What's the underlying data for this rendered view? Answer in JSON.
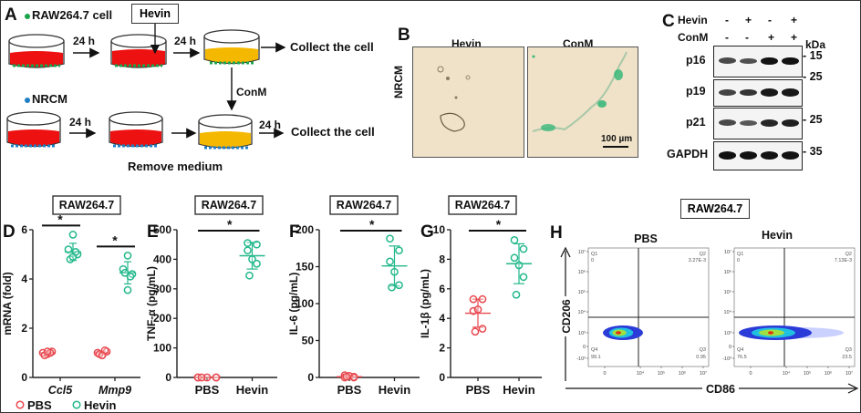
{
  "panelA": {
    "letter": "A",
    "raw_label": "RAW264.7 cell",
    "nrcm_label": "NRCM",
    "hevin_box": "Hevin",
    "t1": "24 h",
    "t2": "24 h",
    "t3": "24 h",
    "t4": "24 h",
    "collect1": "Collect the cell",
    "collect2": "Collect the cell",
    "conm": "ConM",
    "remove": "Remove medium",
    "colors": {
      "red": "#ee1111",
      "yellow": "#f5b800",
      "green_dot": "#1aa54a",
      "blue_dot": "#1f7fc4"
    }
  },
  "panelB": {
    "letter": "B",
    "col1": "Hevin",
    "col2": "ConM",
    "row": "NRCM",
    "scale": "100 µm"
  },
  "panelC": {
    "letter": "C",
    "row_hevin": "Hevin",
    "row_conm": "ConM",
    "hevin_signs": [
      "-",
      "+",
      "-",
      "+"
    ],
    "conm_signs": [
      "-",
      "-",
      "+",
      "+"
    ],
    "kda": "kDa",
    "blots": [
      {
        "name": "p16",
        "marker": "15",
        "intensity": [
          0.55,
          0.5,
          0.95,
          0.95
        ]
      },
      {
        "name": "p19",
        "marker": "25",
        "intensity": [
          0.6,
          0.7,
          0.9,
          0.9
        ]
      },
      {
        "name": "p21",
        "marker": "25",
        "intensity": [
          0.55,
          0.45,
          0.8,
          0.85
        ]
      },
      {
        "name": "GAPDH",
        "marker": "35",
        "intensity": [
          0.95,
          0.95,
          0.95,
          0.95
        ]
      }
    ]
  },
  "chart_data": [
    {
      "id": "D",
      "type": "scatter",
      "letter": "D",
      "title": "RAW264.7",
      "ylabel": "mRNA (fold)",
      "ylim": [
        0,
        6
      ],
      "yticks": [
        "0",
        "2",
        "4",
        "6"
      ],
      "categories": [
        "Ccl5",
        "Mmp9"
      ],
      "legend": [
        "PBS",
        "Hevin"
      ],
      "series": [
        {
          "name": "PBS",
          "color": "#e8494f",
          "groups": [
            [
              0.95,
              1.0,
              1.05,
              0.9,
              1.0,
              1.05
            ],
            [
              0.9,
              1.0,
              1.05,
              0.95,
              1.1,
              0.9
            ]
          ],
          "mean": [
            1.0,
            1.0
          ],
          "sd": [
            0.05,
            0.07
          ]
        },
        {
          "name": "Hevin",
          "color": "#22b88a",
          "groups": [
            [
              5.8,
              5.2,
              5.0,
              4.8,
              5.1,
              4.9
            ],
            [
              4.95,
              4.4,
              4.2,
              4.25,
              4.1,
              3.55
            ]
          ],
          "mean": [
            5.1,
            4.25
          ],
          "sd": [
            0.35,
            0.45
          ]
        }
      ],
      "significance": [
        "*",
        "*"
      ]
    },
    {
      "id": "E",
      "type": "scatter",
      "letter": "E",
      "title": "RAW264.7",
      "ylabel": "TNF-α (pg/mL)",
      "ylim": [
        0,
        500
      ],
      "yticks": [
        "0",
        "100",
        "200",
        "300",
        "400",
        "500"
      ],
      "categories": [
        "PBS",
        "Hevin"
      ],
      "series": [
        {
          "name": "PBS",
          "color": "#e8494f",
          "values": [
            0,
            0,
            0,
            0,
            0,
            0
          ],
          "mean": 0,
          "sd": 0
        },
        {
          "name": "Hevin",
          "color": "#22b88a",
          "values": [
            455,
            450,
            430,
            400,
            385,
            345
          ],
          "mean": 412,
          "sd": 45
        }
      ],
      "significance": "*"
    },
    {
      "id": "F",
      "type": "scatter",
      "letter": "F",
      "title": "RAW264.7",
      "ylabel": "IL-6 (pg/mL)",
      "ylim": [
        0,
        200
      ],
      "yticks": [
        "0",
        "50",
        "100",
        "150",
        "200"
      ],
      "categories": [
        "PBS",
        "Hevin"
      ],
      "series": [
        {
          "name": "PBS",
          "color": "#e8494f",
          "values": [
            3,
            1,
            0,
            2,
            0,
            1
          ],
          "mean": 1,
          "sd": 1
        },
        {
          "name": "Hevin",
          "color": "#22b88a",
          "values": [
            188,
            172,
            157,
            143,
            125,
            122
          ],
          "mean": 151,
          "sd": 27
        }
      ],
      "significance": "*"
    },
    {
      "id": "G",
      "type": "scatter",
      "letter": "G",
      "title": "RAW264.7",
      "ylabel": "IL-1β (pg/mL)",
      "ylim": [
        0,
        10
      ],
      "yticks": [
        "0",
        "2",
        "4",
        "6",
        "8",
        "10"
      ],
      "categories": [
        "PBS",
        "Hevin"
      ],
      "series": [
        {
          "name": "PBS",
          "color": "#e8494f",
          "values": [
            5.3,
            5.3,
            4.5,
            4.6,
            3.3,
            3.1
          ],
          "mean": 4.35,
          "sd": 0.95
        },
        {
          "name": "Hevin",
          "color": "#22b88a",
          "values": [
            9.3,
            8.7,
            8.1,
            7.6,
            6.8,
            5.6
          ],
          "mean": 7.7,
          "sd": 1.35
        }
      ],
      "significance": "*"
    }
  ],
  "panelH": {
    "letter": "H",
    "title": "RAW264.7",
    "xlabel": "CD86",
    "ylabel": "CD206",
    "yticks": [
      "10⁷",
      "10⁶",
      "10⁵",
      "10⁴",
      "10³",
      "0",
      "-10³"
    ],
    "xticks": [
      "0",
      "10⁴",
      "10⁵",
      "10⁶",
      "10⁷"
    ],
    "plots": [
      {
        "name": "PBS",
        "q1": "Q1",
        "q1v": "0",
        "q2": "Q2",
        "q2v": "3.27E-3",
        "q3": "Q3",
        "q3v": "0.95",
        "q4": "Q4",
        "q4v": "99.1"
      },
      {
        "name": "Hevin",
        "q1": "Q1",
        "q1v": "0",
        "q2": "Q2",
        "q2v": "7.13E-3",
        "q3": "Q3",
        "q3v": "23.5",
        "q4": "Q4",
        "q4v": "76.5"
      }
    ]
  }
}
